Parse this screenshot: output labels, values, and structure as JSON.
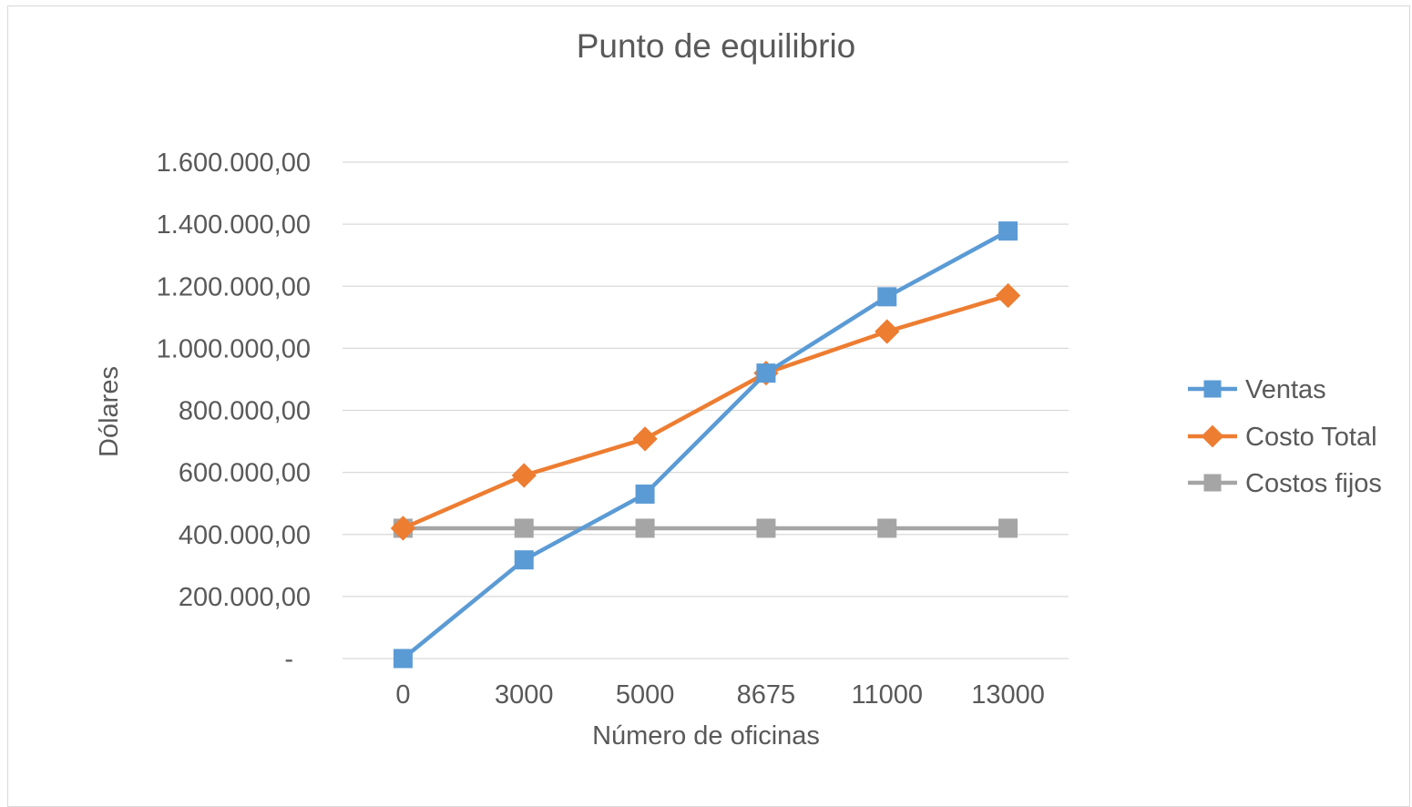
{
  "chart_data": {
    "type": "line",
    "title": "Punto de equilibrio",
    "xlabel": "Número de oficinas",
    "ylabel": "Dólares",
    "categories": [
      "0",
      "3000",
      "5000",
      "8675",
      "11000",
      "13000"
    ],
    "ylim": [
      0,
      1600000
    ],
    "yticks": [
      0,
      200000,
      400000,
      600000,
      800000,
      1000000,
      1200000,
      1400000,
      1600000
    ],
    "ytick_labels": [
      "-",
      "200.000,00",
      "400.000,00",
      "600.000,00",
      "800.000,00",
      "1.000.000,00",
      "1.200.000,00",
      "1.400.000,00",
      "1.600.000,00"
    ],
    "grid": true,
    "legend_position": "right",
    "series": [
      {
        "name": "Ventas",
        "color": "#5b9bd5",
        "marker": "square",
        "values": [
          0,
          318000,
          530000,
          920000,
          1166000,
          1378000
        ]
      },
      {
        "name": "Costo Total",
        "color": "#ed7d31",
        "marker": "diamond",
        "values": [
          420000,
          590000,
          708000,
          920000,
          1054000,
          1170000
        ]
      },
      {
        "name": "Costos fijos",
        "color": "#a5a5a5",
        "marker": "square",
        "values": [
          420000,
          420000,
          420000,
          420000,
          420000,
          420000
        ]
      }
    ]
  }
}
